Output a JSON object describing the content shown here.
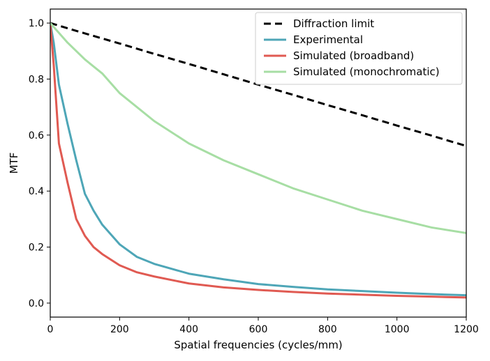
{
  "chart_data": {
    "type": "line",
    "xlabel": "Spatial frequencies (cycles/mm)",
    "ylabel": "MTF",
    "xlim": [
      0,
      1200
    ],
    "ylim": [
      -0.05,
      1.05
    ],
    "xticks": [
      0,
      200,
      400,
      600,
      800,
      1000,
      1200
    ],
    "yticks": [
      0.0,
      0.2,
      0.4,
      0.6,
      0.8,
      1.0
    ],
    "xtick_labels": [
      "0",
      "200",
      "400",
      "600",
      "800",
      "1000",
      "1200"
    ],
    "ytick_labels": [
      "0.0",
      "0.2",
      "0.4",
      "0.6",
      "0.8",
      "1.0"
    ],
    "grid": false,
    "legend_position": "top-right",
    "series": [
      {
        "name": "Diffraction limit",
        "color": "#000000",
        "style": "dashed",
        "x": [
          0,
          100,
          200,
          300,
          400,
          500,
          600,
          700,
          800,
          900,
          1000,
          1100,
          1200
        ],
        "y": [
          1.0,
          0.963,
          0.927,
          0.89,
          0.854,
          0.817,
          0.78,
          0.744,
          0.707,
          0.671,
          0.634,
          0.598,
          0.561
        ]
      },
      {
        "name": "Experimental",
        "color": "#4ea6b7",
        "style": "solid",
        "x": [
          0,
          10,
          25,
          50,
          75,
          100,
          125,
          150,
          200,
          250,
          300,
          400,
          500,
          600,
          700,
          800,
          900,
          1000,
          1100,
          1200
        ],
        "y": [
          1.0,
          0.93,
          0.78,
          0.64,
          0.51,
          0.39,
          0.33,
          0.28,
          0.21,
          0.165,
          0.14,
          0.105,
          0.085,
          0.068,
          0.058,
          0.049,
          0.043,
          0.037,
          0.032,
          0.028
        ]
      },
      {
        "name": "Simulated (broadband)",
        "color": "#e05a52",
        "style": "solid",
        "x": [
          0,
          10,
          25,
          50,
          75,
          100,
          125,
          150,
          200,
          250,
          300,
          400,
          500,
          600,
          700,
          800,
          900,
          1000,
          1100,
          1200
        ],
        "y": [
          1.0,
          0.85,
          0.57,
          0.43,
          0.3,
          0.24,
          0.2,
          0.175,
          0.135,
          0.11,
          0.095,
          0.07,
          0.056,
          0.047,
          0.04,
          0.034,
          0.03,
          0.026,
          0.023,
          0.02
        ]
      },
      {
        "name": "Simulated (monochromatic)",
        "color": "#a7dea4",
        "style": "solid",
        "x": [
          0,
          50,
          100,
          150,
          200,
          300,
          400,
          500,
          600,
          700,
          800,
          900,
          1000,
          1100,
          1200
        ],
        "y": [
          1.0,
          0.93,
          0.87,
          0.82,
          0.75,
          0.65,
          0.57,
          0.51,
          0.46,
          0.41,
          0.37,
          0.33,
          0.3,
          0.27,
          0.25
        ]
      }
    ]
  }
}
